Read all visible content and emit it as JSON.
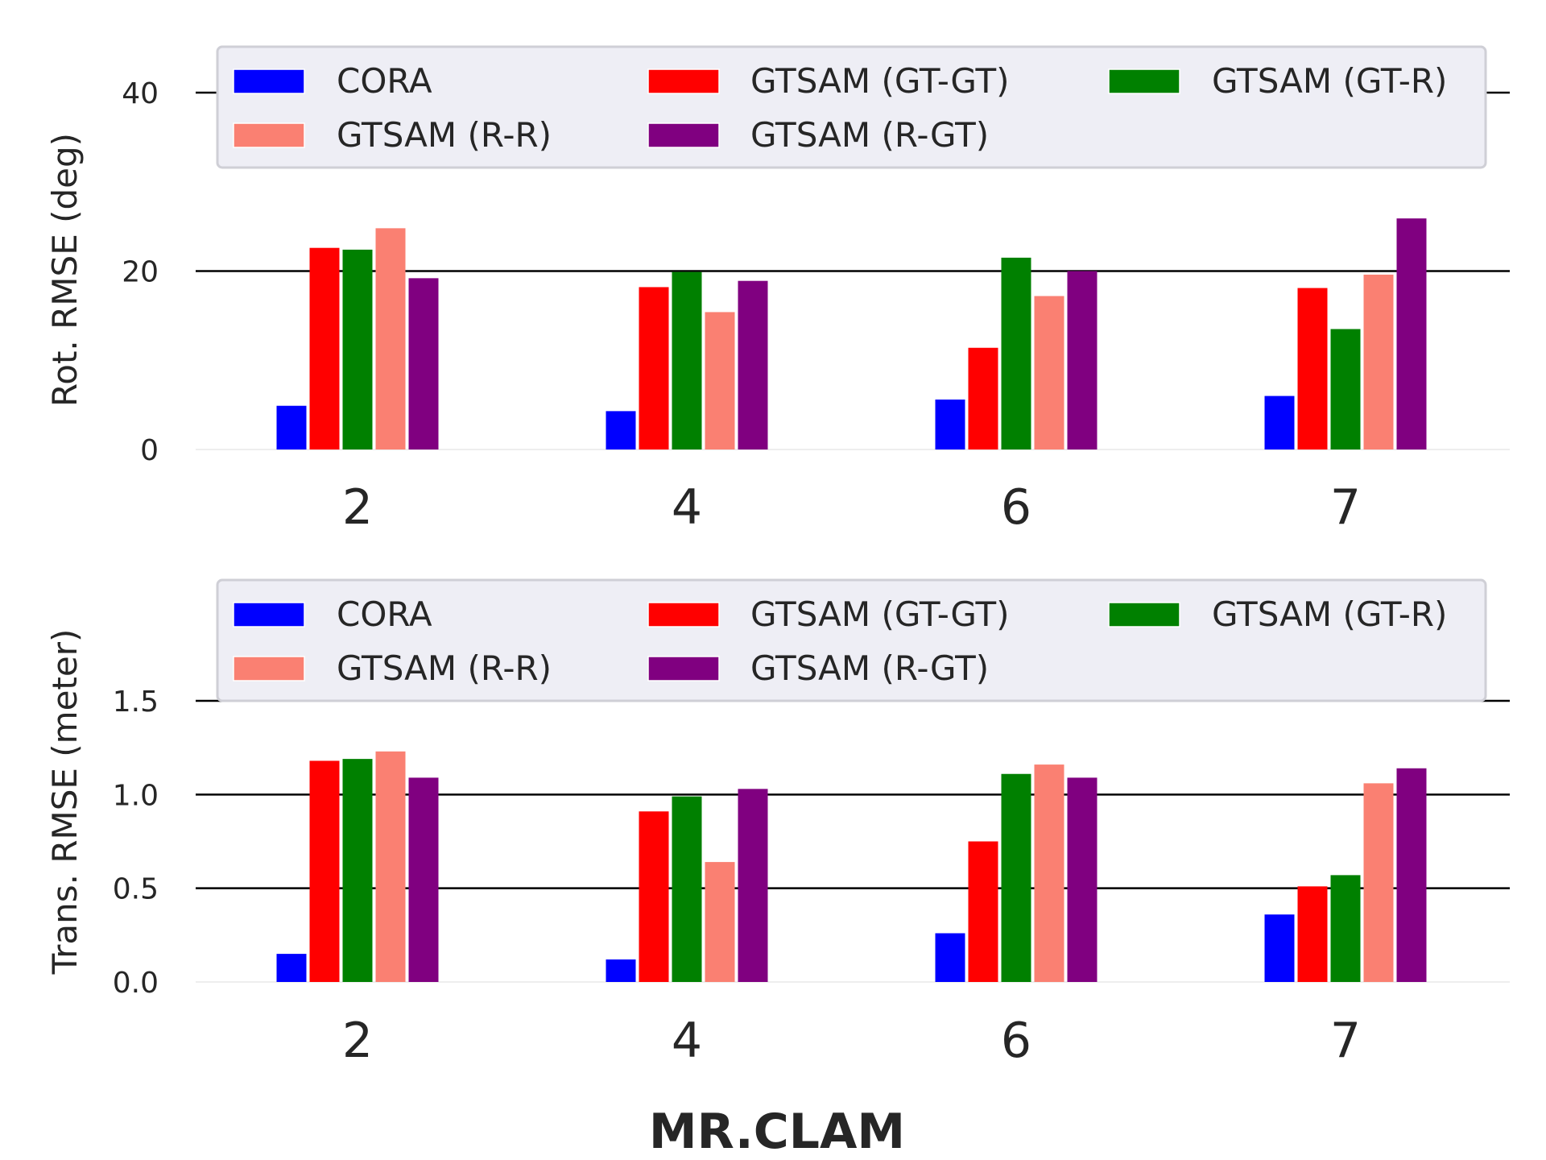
{
  "figure": {
    "xlabel": "MR.CLAM"
  },
  "chart_data": [
    {
      "type": "bar",
      "ylabel": "Rot. RMSE (deg)",
      "ylim": [
        0,
        40
      ],
      "yticks": [
        0,
        20,
        40
      ],
      "ytick_labels": [
        "0",
        "20",
        "40"
      ],
      "grid": true,
      "legend_position": "top",
      "categories": [
        "2",
        "4",
        "6",
        "7"
      ],
      "series": [
        {
          "name": "CORA",
          "color": "#0000ff",
          "values": [
            4.9,
            4.3,
            5.6,
            6.0
          ]
        },
        {
          "name": "GTSAM (GT-GT)",
          "color": "#ff0000",
          "values": [
            22.6,
            18.2,
            11.4,
            18.1
          ]
        },
        {
          "name": "GTSAM (GT-R)",
          "color": "#008000",
          "values": [
            22.4,
            19.9,
            21.5,
            13.5
          ]
        },
        {
          "name": "GTSAM (R-R)",
          "color": "#fa8072",
          "values": [
            24.8,
            15.4,
            17.2,
            19.6
          ]
        },
        {
          "name": "GTSAM (R-GT)",
          "color": "#800080",
          "values": [
            19.2,
            18.9,
            20.0,
            25.9
          ]
        }
      ]
    },
    {
      "type": "bar",
      "ylabel": "Trans. RMSE (meter)",
      "ylim": [
        0,
        1.5
      ],
      "yticks": [
        0,
        0.5,
        1.0,
        1.5
      ],
      "ytick_labels": [
        "0.0",
        "0.5",
        "1.0",
        "1.5"
      ],
      "grid": true,
      "legend_position": "top",
      "categories": [
        "2",
        "4",
        "6",
        "7"
      ],
      "series": [
        {
          "name": "CORA",
          "color": "#0000ff",
          "values": [
            0.15,
            0.12,
            0.26,
            0.36
          ]
        },
        {
          "name": "GTSAM (GT-GT)",
          "color": "#ff0000",
          "values": [
            1.18,
            0.91,
            0.75,
            0.51
          ]
        },
        {
          "name": "GTSAM (GT-R)",
          "color": "#008000",
          "values": [
            1.19,
            0.99,
            1.11,
            0.57
          ]
        },
        {
          "name": "GTSAM (R-R)",
          "color": "#fa8072",
          "values": [
            1.23,
            0.64,
            1.16,
            1.06
          ]
        },
        {
          "name": "GTSAM (R-GT)",
          "color": "#800080",
          "values": [
            1.09,
            1.03,
            1.09,
            1.14
          ]
        }
      ]
    }
  ]
}
